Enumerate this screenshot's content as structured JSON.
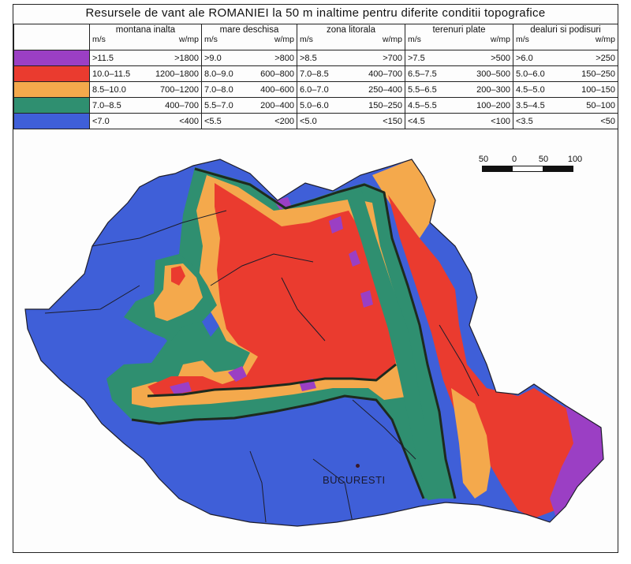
{
  "title": "Resursele de vant ale ROMANIEI la 50 m inaltime pentru diferite conditii topografice",
  "colors": {
    "class_1": "#9b3fc4",
    "class_2": "#ea3b2f",
    "class_3": "#f4a94c",
    "class_4": "#2f8f70",
    "class_5": "#3f5fd8",
    "border_line": "#1d1d2a",
    "outline_dark": "#1e2a1e"
  },
  "legend": {
    "columns": [
      {
        "name": "montana inalta",
        "unit_a": "m/s",
        "unit_b": "w/mp"
      },
      {
        "name": "mare deschisa",
        "unit_a": "m/s",
        "unit_b": "w/mp"
      },
      {
        "name": "zona litorala",
        "unit_a": "m/s",
        "unit_b": "w/mp"
      },
      {
        "name": "terenuri plate",
        "unit_a": "m/s",
        "unit_b": "w/mp"
      },
      {
        "name": "dealuri si podisuri",
        "unit_a": "m/s",
        "unit_b": "w/mp"
      }
    ],
    "rows": [
      {
        "color_key": "class_1",
        "cells": [
          [
            ">11.5",
            ">1800"
          ],
          [
            ">9.0",
            ">800"
          ],
          [
            ">8.5",
            ">700"
          ],
          [
            ">7.5",
            ">500"
          ],
          [
            ">6.0",
            ">250"
          ]
        ]
      },
      {
        "color_key": "class_2",
        "cells": [
          [
            "10.0–11.5",
            "1200–1800"
          ],
          [
            "8.0–9.0",
            "600–800"
          ],
          [
            "7.0–8.5",
            "400–700"
          ],
          [
            "6.5–7.5",
            "300–500"
          ],
          [
            "5.0–6.0",
            "150–250"
          ]
        ]
      },
      {
        "color_key": "class_3",
        "cells": [
          [
            "8.5–10.0",
            "700–1200"
          ],
          [
            "7.0–8.0",
            "400–600"
          ],
          [
            "6.0–7.0",
            "250–400"
          ],
          [
            "5.5–6.5",
            "200–300"
          ],
          [
            "4.5–5.0",
            "100–150"
          ]
        ]
      },
      {
        "color_key": "class_4",
        "cells": [
          [
            "7.0–8.5",
            "400–700"
          ],
          [
            "5.5–7.0",
            "200–400"
          ],
          [
            "5.0–6.0",
            "150–250"
          ],
          [
            "4.5–5.5",
            "100–200"
          ],
          [
            "3.5–4.5",
            "50–100"
          ]
        ]
      },
      {
        "color_key": "class_5",
        "cells": [
          [
            "<7.0",
            "<400"
          ],
          [
            "<5.5",
            "<200"
          ],
          [
            "<5.0",
            "<150"
          ],
          [
            "<4.5",
            "<100"
          ],
          [
            "<3.5",
            "<50"
          ]
        ]
      }
    ]
  },
  "scale_bar": {
    "ticks": [
      "50",
      "0",
      "50",
      "100"
    ]
  },
  "city": {
    "name": "BUCURESTI"
  }
}
